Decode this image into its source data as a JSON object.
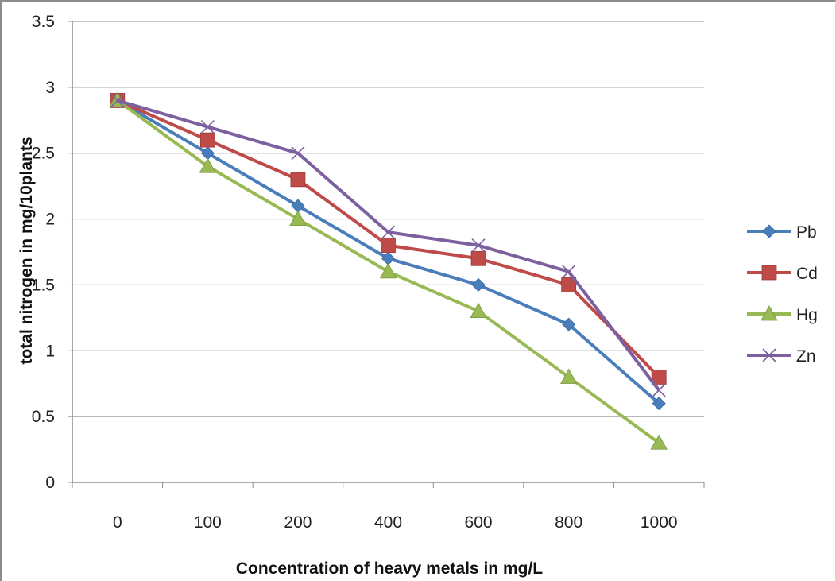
{
  "chart_data": {
    "type": "line",
    "title": "",
    "xlabel": "Concentration of heavy metals in mg/L",
    "ylabel": "total nitrogen in mg/10plants",
    "categories": [
      "0",
      "100",
      "200",
      "400",
      "600",
      "800",
      "1000"
    ],
    "y_ticks": [
      "0",
      "0.5",
      "1",
      "1.5",
      "2",
      "2.5",
      "3",
      "3.5"
    ],
    "ylim": [
      0,
      3.5
    ],
    "grid": "horizontal",
    "legend_position": "right",
    "series": [
      {
        "name": "Pb",
        "values": [
          2.9,
          2.5,
          2.1,
          1.7,
          1.5,
          1.2,
          0.6
        ],
        "color": "#4a7ebb",
        "marker": "diamond"
      },
      {
        "name": "Cd",
        "values": [
          2.9,
          2.6,
          2.3,
          1.8,
          1.7,
          1.5,
          0.8
        ],
        "color": "#be4b48",
        "marker": "square"
      },
      {
        "name": "Hg",
        "values": [
          2.9,
          2.4,
          2.0,
          1.6,
          1.3,
          0.8,
          0.3
        ],
        "color": "#98b954",
        "marker": "triangle"
      },
      {
        "name": "Zn",
        "values": [
          2.9,
          2.7,
          2.5,
          1.9,
          1.8,
          1.6,
          0.7
        ],
        "color": "#7d60a0",
        "marker": "x"
      }
    ]
  }
}
